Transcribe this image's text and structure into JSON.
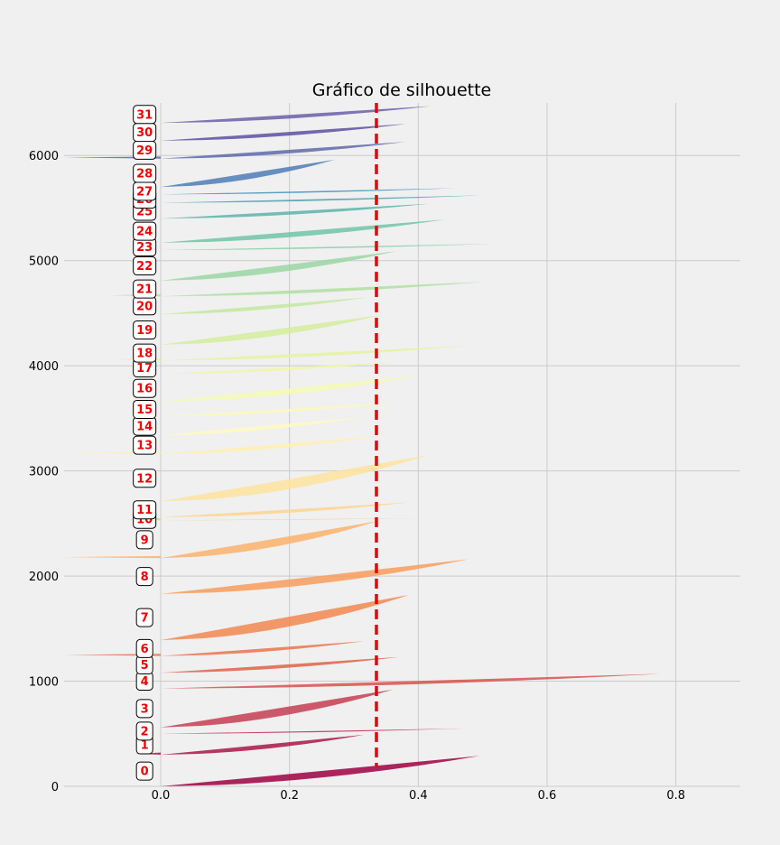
{
  "chart_data": {
    "type": "area",
    "title": "Gráfico de silhouette",
    "xlabel": "",
    "ylabel": "",
    "xlim": [
      -0.15,
      0.9
    ],
    "ylim": [
      0,
      6500
    ],
    "x_ticks": [
      0.0,
      0.2,
      0.4,
      0.6,
      0.8
    ],
    "y_ticks": [
      0,
      1000,
      2000,
      3000,
      4000,
      5000,
      6000
    ],
    "x_tick_labels": [
      "0.0",
      "0.2",
      "0.4",
      "0.6",
      "0.8"
    ],
    "y_tick_labels": [
      "0",
      "1000",
      "2000",
      "3000",
      "4000",
      "5000",
      "6000"
    ],
    "grid": true,
    "average_silhouette_score": 0.335,
    "average_line_color": "#ee0000",
    "clusters": [
      {
        "label": "0",
        "y_lower": 0,
        "y_upper": 290,
        "max_score": 0.495,
        "min_score": 0.0
      },
      {
        "label": "1",
        "y_lower": 300,
        "y_upper": 490,
        "max_score": 0.315,
        "min_score": -0.04
      },
      {
        "label": "2",
        "y_lower": 500,
        "y_upper": 550,
        "max_score": 0.468,
        "min_score": 0.0
      },
      {
        "label": "3",
        "y_lower": 560,
        "y_upper": 920,
        "max_score": 0.36,
        "min_score": 0.0
      },
      {
        "label": "4",
        "y_lower": 930,
        "y_upper": 1070,
        "max_score": 0.775,
        "min_score": 0.0
      },
      {
        "label": "5",
        "y_lower": 1080,
        "y_upper": 1230,
        "max_score": 0.37,
        "min_score": 0.0
      },
      {
        "label": "6",
        "y_lower": 1240,
        "y_upper": 1380,
        "max_score": 0.315,
        "min_score": -0.15
      },
      {
        "label": "7",
        "y_lower": 1390,
        "y_upper": 1820,
        "max_score": 0.385,
        "min_score": 0.0
      },
      {
        "label": "8",
        "y_lower": 1830,
        "y_upper": 2160,
        "max_score": 0.478,
        "min_score": 0.0
      },
      {
        "label": "9",
        "y_lower": 2170,
        "y_upper": 2520,
        "max_score": 0.335,
        "min_score": -0.15
      },
      {
        "label": "10",
        "y_lower": 2530,
        "y_upper": 2550,
        "max_score": 0.398,
        "min_score": -0.055
      },
      {
        "label": "11",
        "y_lower": 2560,
        "y_upper": 2700,
        "max_score": 0.385,
        "min_score": 0.0
      },
      {
        "label": "12",
        "y_lower": 2710,
        "y_upper": 3150,
        "max_score": 0.415,
        "min_score": 0.0
      },
      {
        "label": "13",
        "y_lower": 3160,
        "y_upper": 3330,
        "max_score": 0.335,
        "min_score": -0.15
      },
      {
        "label": "14",
        "y_lower": 3340,
        "y_upper": 3510,
        "max_score": 0.31,
        "min_score": 0.0
      },
      {
        "label": "15",
        "y_lower": 3520,
        "y_upper": 3650,
        "max_score": 0.37,
        "min_score": 0.0
      },
      {
        "label": "16",
        "y_lower": 3660,
        "y_upper": 3910,
        "max_score": 0.405,
        "min_score": 0.0
      },
      {
        "label": "17",
        "y_lower": 3920,
        "y_upper": 4040,
        "max_score": 0.37,
        "min_score": 0.0
      },
      {
        "label": "18",
        "y_lower": 4050,
        "y_upper": 4190,
        "max_score": 0.475,
        "min_score": -0.07
      },
      {
        "label": "19",
        "y_lower": 4200,
        "y_upper": 4480,
        "max_score": 0.34,
        "min_score": 0.0
      },
      {
        "label": "20",
        "y_lower": 4490,
        "y_upper": 4650,
        "max_score": 0.32,
        "min_score": 0.0
      },
      {
        "label": "21",
        "y_lower": 4660,
        "y_upper": 4800,
        "max_score": 0.505,
        "min_score": -0.08
      },
      {
        "label": "22",
        "y_lower": 4810,
        "y_upper": 5090,
        "max_score": 0.365,
        "min_score": 0.0
      },
      {
        "label": "23",
        "y_lower": 5100,
        "y_upper": 5160,
        "max_score": 0.515,
        "min_score": 0.0
      },
      {
        "label": "24",
        "y_lower": 5170,
        "y_upper": 5390,
        "max_score": 0.44,
        "min_score": 0.0
      },
      {
        "label": "25",
        "y_lower": 5400,
        "y_upper": 5540,
        "max_score": 0.415,
        "min_score": 0.0
      },
      {
        "label": "26",
        "y_lower": 5550,
        "y_upper": 5620,
        "max_score": 0.495,
        "min_score": 0.0
      },
      {
        "label": "27",
        "y_lower": 5630,
        "y_upper": 5690,
        "max_score": 0.46,
        "min_score": 0.0
      },
      {
        "label": "28",
        "y_lower": 5700,
        "y_upper": 5960,
        "max_score": 0.27,
        "min_score": 0.0
      },
      {
        "label": "29",
        "y_lower": 5970,
        "y_upper": 6130,
        "max_score": 0.38,
        "min_score": -0.15
      },
      {
        "label": "30",
        "y_lower": 6140,
        "y_upper": 6300,
        "max_score": 0.38,
        "min_score": 0.0
      },
      {
        "label": "31",
        "y_lower": 6310,
        "y_upper": 6470,
        "max_score": 0.42,
        "min_score": 0.0
      }
    ],
    "colors": [
      "#9e0142",
      "#ab1549",
      "#b9294f",
      "#c63e54",
      "#d5534e",
      "#e16248",
      "#ea744b",
      "#f2874f",
      "#f79c5c",
      "#fbb16b",
      "#fdc57c",
      "#fdd58d",
      "#fee39f",
      "#fef0b1",
      "#fffabf",
      "#fbf9ba",
      "#f5fab4",
      "#eef7a6",
      "#e4f3a0",
      "#d4ed9c",
      "#c3e79e",
      "#b0dfa1",
      "#9bd6a4",
      "#86cda5",
      "#70c4a7",
      "#5bb4aa",
      "#48a0b2",
      "#3d8eb9",
      "#4d7cb5",
      "#5e69ac",
      "#5e4fa2",
      "#6a5fa8"
    ]
  }
}
